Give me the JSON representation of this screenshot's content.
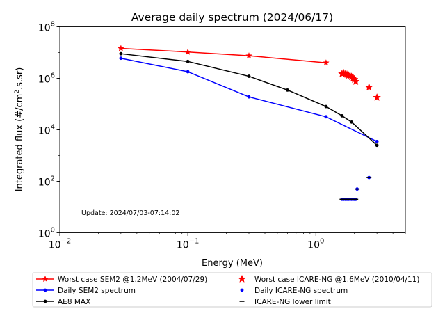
{
  "chart_data": {
    "type": "line",
    "title": "Average daily spectrum (2024/06/17)",
    "xlabel": "Energy (MeV)",
    "ylabel": "Integrated flux (#/cm2.s.sr)",
    "ylabel_main": "Integrated flux (#/cm",
    "ylabel_sup": "2",
    "ylabel_tail": ".s.sr)",
    "xscale": "log",
    "yscale": "log",
    "xlim": [
      0.01,
      5.0
    ],
    "ylim": [
      1,
      100000000
    ],
    "x_ticks": [
      {
        "value": 0.01,
        "base": "10",
        "exp": "−2"
      },
      {
        "value": 0.1,
        "base": "10",
        "exp": "−1"
      },
      {
        "value": 1,
        "base": "10",
        "exp": "0"
      }
    ],
    "y_ticks": [
      {
        "value": 1,
        "base": "10",
        "exp": "0"
      },
      {
        "value": 100,
        "base": "10",
        "exp": "2"
      },
      {
        "value": 10000,
        "base": "10",
        "exp": "4"
      },
      {
        "value": 1000000,
        "base": "10",
        "exp": "6"
      },
      {
        "value": 100000000,
        "base": "10",
        "exp": "8"
      }
    ],
    "annotation": "Update: 2024/07/03-07:14:02",
    "grid": false,
    "legend_position": "bottom",
    "series": [
      {
        "name": "Worst case SEM2 @1.2MeV (2004/07/29)",
        "color": "#ff0000",
        "marker": "star",
        "line": true,
        "x": [
          0.03,
          0.1,
          0.3,
          1.2
        ],
        "y": [
          14500000,
          10500000,
          7500000,
          4000000
        ]
      },
      {
        "name": "Worst case ICARE-NG @1.6MeV (2010/04/11)",
        "color": "#ff0000",
        "marker": "star",
        "line": false,
        "x": [
          1.6,
          1.65,
          1.7,
          1.75,
          1.8,
          1.85,
          1.9,
          1.95,
          2.0,
          2.05,
          2.6,
          3.0
        ],
        "y": [
          1500000,
          1600000,
          1450000,
          1400000,
          1300000,
          1250000,
          1150000,
          1000000,
          900000,
          750000,
          450000,
          180000
        ]
      },
      {
        "name": "Daily SEM2 spectrum",
        "color": "#0000ff",
        "marker": "dot",
        "line": true,
        "x": [
          0.03,
          0.1,
          0.3,
          1.2,
          3.0
        ],
        "y": [
          6000000,
          1800000,
          190000,
          32000,
          3500
        ]
      },
      {
        "name": "Daily ICARE-NG spectrum",
        "color": "#0000ff",
        "marker": "dot",
        "line": false,
        "x": [
          1.6,
          1.65,
          1.7,
          1.75,
          1.8,
          1.85,
          1.9,
          1.95,
          2.0,
          2.05,
          2.1,
          2.6
        ],
        "y": [
          20,
          20,
          20,
          20,
          20,
          20,
          20,
          20,
          20,
          20,
          50,
          140
        ]
      },
      {
        "name": "AE8 MAX",
        "color": "#000000",
        "marker": "dot",
        "line": true,
        "x": [
          0.03,
          0.1,
          0.3,
          0.6,
          1.2,
          1.6,
          1.9,
          3.0
        ],
        "y": [
          9000000,
          4500000,
          1200000,
          350000,
          80000,
          35000,
          20000,
          2500
        ]
      },
      {
        "name": "ICARE-NG lower limit",
        "color": "#000000",
        "marker": "dash",
        "line": false,
        "x": [
          1.6,
          1.65,
          1.7,
          1.75,
          1.8,
          1.85,
          1.9,
          1.95,
          2.0,
          2.05,
          2.1,
          2.6
        ],
        "y": [
          20,
          20,
          20,
          20,
          20,
          20,
          20,
          20,
          20,
          20,
          50,
          140
        ]
      }
    ],
    "legend_layout": [
      {
        "series_index": 0,
        "col": 0,
        "row": 0
      },
      {
        "series_index": 2,
        "col": 0,
        "row": 1
      },
      {
        "series_index": 4,
        "col": 0,
        "row": 2
      },
      {
        "series_index": 1,
        "col": 1,
        "row": 0
      },
      {
        "series_index": 3,
        "col": 1,
        "row": 1
      },
      {
        "series_index": 5,
        "col": 1,
        "row": 2
      }
    ]
  }
}
